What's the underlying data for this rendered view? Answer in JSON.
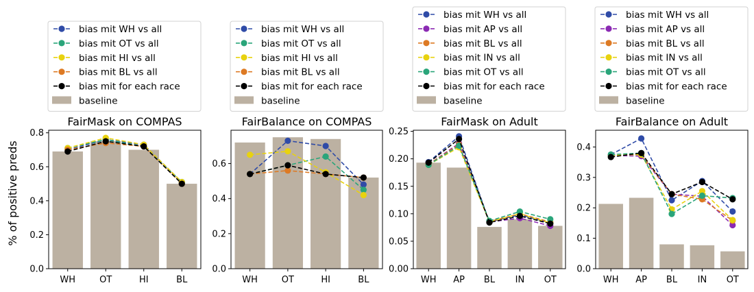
{
  "figure": {
    "ylabel": "% of positive preds"
  },
  "colors": {
    "WH": "#2f4ba7",
    "OT": "#2aa57a",
    "HI": "#e8d20f",
    "BL": "#dd7a24",
    "AP": "#8b2ab3",
    "IN": "#e8d20f",
    "each": "#000000",
    "baseline": "#bcb1a2"
  },
  "chart_data": [
    {
      "type": "bar",
      "title": "FairMask on COMPAS",
      "categories": [
        "WH",
        "OT",
        "HI",
        "BL"
      ],
      "baseline": {
        "name": "baseline",
        "values": [
          0.69,
          0.75,
          0.7,
          0.5
        ]
      },
      "ylim": [
        0,
        0.815
      ],
      "yticks": [
        0.0,
        0.2,
        0.4,
        0.6,
        0.8
      ],
      "ytick_labels": [
        "0.0",
        "0.2",
        "0.4",
        "0.6",
        "0.8"
      ],
      "series": [
        {
          "name": "bias mit WH vs all",
          "key": "WH",
          "values": [
            0.7,
            0.76,
            0.73,
            0.51
          ]
        },
        {
          "name": "bias mit OT vs all",
          "key": "OT",
          "values": [
            0.71,
            0.76,
            0.72,
            0.51
          ]
        },
        {
          "name": "bias mit HI vs all",
          "key": "HI",
          "values": [
            0.71,
            0.77,
            0.73,
            0.51
          ]
        },
        {
          "name": "bias mit BL vs all",
          "key": "BL",
          "values": [
            0.7,
            0.74,
            0.72,
            0.5
          ]
        },
        {
          "name": "bias mit for each race",
          "key": "each",
          "values": [
            0.69,
            0.75,
            0.72,
            0.5
          ]
        }
      ]
    },
    {
      "type": "bar",
      "title": "FairBalance on COMPAS",
      "categories": [
        "WH",
        "OT",
        "HI",
        "BL"
      ],
      "baseline": {
        "name": "baseline",
        "values": [
          0.72,
          0.75,
          0.74,
          0.52
        ]
      },
      "ylim": [
        0,
        0.79
      ],
      "yticks": [
        0.0,
        0.2,
        0.4,
        0.6
      ],
      "ytick_labels": [
        "0.0",
        "0.2",
        "0.4",
        "0.6"
      ],
      "series": [
        {
          "name": "bias mit WH vs all",
          "key": "WH",
          "values": [
            0.54,
            0.73,
            0.7,
            0.48
          ]
        },
        {
          "name": "bias mit OT vs all",
          "key": "OT",
          "values": [
            0.54,
            0.59,
            0.64,
            0.45
          ]
        },
        {
          "name": "bias mit HI vs all",
          "key": "HI",
          "values": [
            0.65,
            0.67,
            0.55,
            0.42
          ]
        },
        {
          "name": "bias mit BL vs all",
          "key": "BL",
          "values": [
            0.54,
            0.56,
            0.54,
            0.52
          ]
        },
        {
          "name": "bias mit for each race",
          "key": "each",
          "values": [
            0.54,
            0.59,
            0.54,
            0.52
          ]
        }
      ]
    },
    {
      "type": "bar",
      "title": "FairMask on Adult",
      "categories": [
        "WH",
        "AP",
        "BL",
        "IN",
        "OT"
      ],
      "baseline": {
        "name": "baseline",
        "values": [
          0.193,
          0.184,
          0.076,
          0.09,
          0.078
        ]
      },
      "ylim": [
        0,
        0.252
      ],
      "yticks": [
        0.0,
        0.05,
        0.1,
        0.15,
        0.2,
        0.25
      ],
      "ytick_labels": [
        "0.00",
        "0.05",
        "0.10",
        "0.15",
        "0.20",
        "0.25"
      ],
      "series": [
        {
          "name": "bias mit WH vs all",
          "key": "WH",
          "values": [
            0.194,
            0.241,
            0.085,
            0.098,
            0.083
          ]
        },
        {
          "name": "bias mit AP vs all",
          "key": "AP",
          "values": [
            0.19,
            0.228,
            0.085,
            0.092,
            0.078
          ]
        },
        {
          "name": "bias mit BL vs all",
          "key": "BL",
          "values": [
            0.19,
            0.226,
            0.086,
            0.1,
            0.085
          ]
        },
        {
          "name": "bias mit IN vs all",
          "key": "IN",
          "values": [
            0.189,
            0.221,
            0.085,
            0.1,
            0.083
          ]
        },
        {
          "name": "bias mit OT vs all",
          "key": "OT",
          "values": [
            0.189,
            0.224,
            0.087,
            0.104,
            0.09
          ]
        },
        {
          "name": "bias mit for each race",
          "key": "each",
          "values": [
            0.193,
            0.236,
            0.084,
            0.096,
            0.082
          ]
        }
      ]
    },
    {
      "type": "bar",
      "title": "FairBalance on Adult",
      "categories": [
        "WH",
        "AP",
        "BL",
        "IN",
        "OT"
      ],
      "baseline": {
        "name": "baseline",
        "values": [
          0.213,
          0.233,
          0.08,
          0.077,
          0.057
        ]
      },
      "ylim": [
        0,
        0.455
      ],
      "yticks": [
        0.0,
        0.1,
        0.2,
        0.3,
        0.4
      ],
      "ytick_labels": [
        "0.0",
        "0.1",
        "0.2",
        "0.3",
        "0.4"
      ],
      "series": [
        {
          "name": "bias mit WH vs all",
          "key": "WH",
          "values": [
            0.375,
            0.428,
            0.225,
            0.288,
            0.188
          ]
        },
        {
          "name": "bias mit AP vs all",
          "key": "AP",
          "values": [
            0.372,
            0.37,
            0.245,
            0.238,
            0.143
          ]
        },
        {
          "name": "bias mit BL vs all",
          "key": "BL",
          "values": [
            0.373,
            0.375,
            0.245,
            0.228,
            0.158
          ]
        },
        {
          "name": "bias mit IN vs all",
          "key": "IN",
          "values": [
            0.373,
            0.375,
            0.195,
            0.255,
            0.16
          ]
        },
        {
          "name": "bias mit OT vs all",
          "key": "OT",
          "values": [
            0.375,
            0.38,
            0.18,
            0.24,
            0.232
          ]
        },
        {
          "name": "bias mit for each race",
          "key": "each",
          "values": [
            0.367,
            0.38,
            0.245,
            0.285,
            0.228
          ]
        }
      ]
    }
  ]
}
